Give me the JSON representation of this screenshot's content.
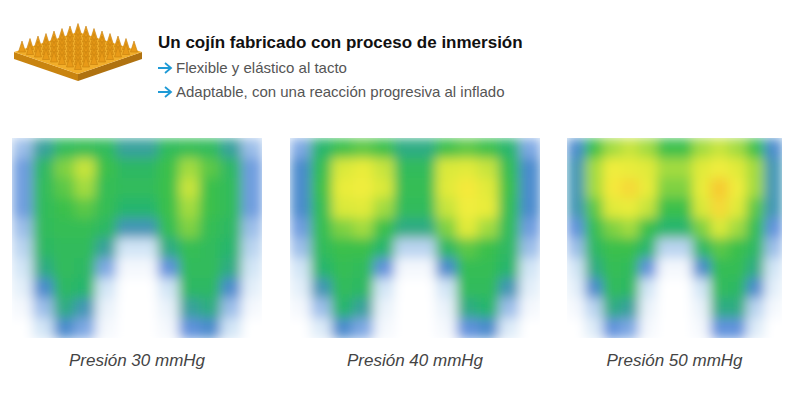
{
  "header": {
    "title": "Un cojín fabricado con proceso de inmersión",
    "bullets": [
      "Flexible y elástico al tacto",
      "Adaptable, con una reacción progresiva al inflado"
    ]
  },
  "chart_data": [
    {
      "type": "heatmap",
      "title": "Presión 30 mmHg",
      "tick_labels": false,
      "zlim": [
        0,
        60
      ],
      "cells": [
        [
          12,
          22,
          30,
          32,
          30,
          22,
          22,
          30,
          32,
          30,
          22,
          12
        ],
        [
          15,
          28,
          38,
          42,
          34,
          28,
          28,
          34,
          40,
          36,
          28,
          15
        ],
        [
          15,
          30,
          36,
          40,
          32,
          30,
          30,
          34,
          42,
          34,
          30,
          15
        ],
        [
          15,
          30,
          34,
          36,
          32,
          26,
          26,
          34,
          40,
          34,
          30,
          15
        ],
        [
          12,
          30,
          32,
          32,
          28,
          20,
          20,
          32,
          38,
          32,
          28,
          12
        ],
        [
          10,
          28,
          30,
          30,
          22,
          8,
          8,
          24,
          32,
          30,
          26,
          10
        ],
        [
          8,
          24,
          30,
          28,
          14,
          2,
          2,
          16,
          30,
          30,
          24,
          8
        ],
        [
          5,
          18,
          28,
          26,
          8,
          0,
          0,
          8,
          28,
          28,
          18,
          5
        ],
        [
          2,
          12,
          24,
          20,
          4,
          0,
          0,
          4,
          22,
          24,
          12,
          2
        ],
        [
          0,
          8,
          18,
          14,
          2,
          0,
          0,
          2,
          16,
          18,
          8,
          0
        ]
      ]
    },
    {
      "type": "heatmap",
      "title": "Presión 40 mmHg",
      "tick_labels": false,
      "zlim": [
        0,
        60
      ],
      "cells": [
        [
          14,
          26,
          34,
          36,
          34,
          24,
          24,
          34,
          36,
          34,
          26,
          14
        ],
        [
          18,
          32,
          44,
          48,
          42,
          30,
          30,
          44,
          46,
          42,
          32,
          18
        ],
        [
          18,
          34,
          48,
          50,
          44,
          32,
          32,
          46,
          52,
          46,
          34,
          18
        ],
        [
          18,
          32,
          44,
          46,
          40,
          30,
          30,
          42,
          50,
          48,
          32,
          18
        ],
        [
          15,
          32,
          38,
          40,
          34,
          24,
          24,
          38,
          46,
          40,
          30,
          15
        ],
        [
          12,
          30,
          34,
          34,
          26,
          10,
          10,
          28,
          36,
          34,
          28,
          12
        ],
        [
          8,
          26,
          32,
          30,
          16,
          2,
          2,
          18,
          32,
          32,
          26,
          8
        ],
        [
          5,
          20,
          30,
          28,
          8,
          0,
          0,
          8,
          30,
          30,
          20,
          5
        ],
        [
          2,
          12,
          26,
          22,
          4,
          0,
          0,
          4,
          24,
          26,
          12,
          2
        ],
        [
          0,
          6,
          18,
          14,
          2,
          0,
          0,
          2,
          16,
          18,
          6,
          0
        ]
      ]
    },
    {
      "type": "heatmap",
      "title": "Presión 50 mmHg",
      "tick_labels": false,
      "zlim": [
        0,
        60
      ],
      "cells": [
        [
          18,
          34,
          40,
          42,
          40,
          34,
          34,
          40,
          42,
          40,
          34,
          18
        ],
        [
          20,
          40,
          50,
          48,
          46,
          40,
          40,
          46,
          50,
          46,
          40,
          20
        ],
        [
          20,
          40,
          52,
          54,
          48,
          38,
          38,
          48,
          56,
          50,
          40,
          20
        ],
        [
          20,
          36,
          46,
          48,
          42,
          34,
          34,
          44,
          54,
          46,
          36,
          20
        ],
        [
          16,
          32,
          38,
          40,
          34,
          26,
          26,
          38,
          44,
          40,
          32,
          16
        ],
        [
          12,
          28,
          34,
          34,
          26,
          10,
          10,
          28,
          36,
          34,
          28,
          12
        ],
        [
          8,
          24,
          32,
          30,
          16,
          2,
          2,
          18,
          32,
          32,
          24,
          8
        ],
        [
          5,
          18,
          30,
          28,
          8,
          0,
          0,
          8,
          30,
          28,
          18,
          5
        ],
        [
          2,
          10,
          24,
          22,
          4,
          0,
          0,
          4,
          24,
          24,
          10,
          2
        ],
        [
          0,
          6,
          16,
          14,
          2,
          0,
          0,
          2,
          16,
          16,
          6,
          0
        ]
      ]
    }
  ]
}
